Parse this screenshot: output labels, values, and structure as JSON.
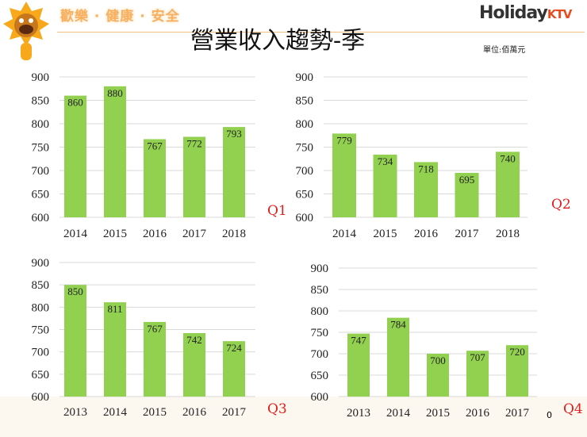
{
  "header": {
    "slogan": "歡樂 · 健康 · 安全",
    "title": "營業收入趨勢-季",
    "unit": "單位:佰萬元",
    "logo_main": "Holiday",
    "logo_sub": "KTV",
    "page_number": "0"
  },
  "colors": {
    "bar": "#92d050",
    "grid": "#d9d9d9",
    "quarter_label": "#e02020"
  },
  "chart_data": [
    {
      "type": "bar",
      "title": "Q1",
      "categories": [
        "2014",
        "2015",
        "2016",
        "2017",
        "2018"
      ],
      "values": [
        860,
        880,
        767,
        772,
        793
      ],
      "ylim": [
        600,
        900
      ],
      "yticks": [
        600,
        650,
        700,
        750,
        800,
        850,
        900
      ],
      "grid": true
    },
    {
      "type": "bar",
      "title": "Q2",
      "categories": [
        "2014",
        "2015",
        "2016",
        "2017",
        "2018"
      ],
      "values": [
        779,
        734,
        718,
        695,
        740
      ],
      "ylim": [
        600,
        900
      ],
      "yticks": [
        600,
        650,
        700,
        750,
        800,
        850,
        900
      ],
      "grid": true
    },
    {
      "type": "bar",
      "title": "Q3",
      "categories": [
        "2013",
        "2014",
        "2015",
        "2016",
        "2017"
      ],
      "values": [
        850,
        811,
        767,
        742,
        724
      ],
      "ylim": [
        600,
        900
      ],
      "yticks": [
        600,
        650,
        700,
        750,
        800,
        850,
        900
      ],
      "grid": true
    },
    {
      "type": "bar",
      "title": "Q4",
      "categories": [
        "2013",
        "2014",
        "2015",
        "2016",
        "2017"
      ],
      "values": [
        747,
        784,
        700,
        707,
        720
      ],
      "ylim": [
        600,
        900
      ],
      "yticks": [
        600,
        650,
        700,
        750,
        800,
        850,
        900
      ],
      "grid": true
    }
  ]
}
